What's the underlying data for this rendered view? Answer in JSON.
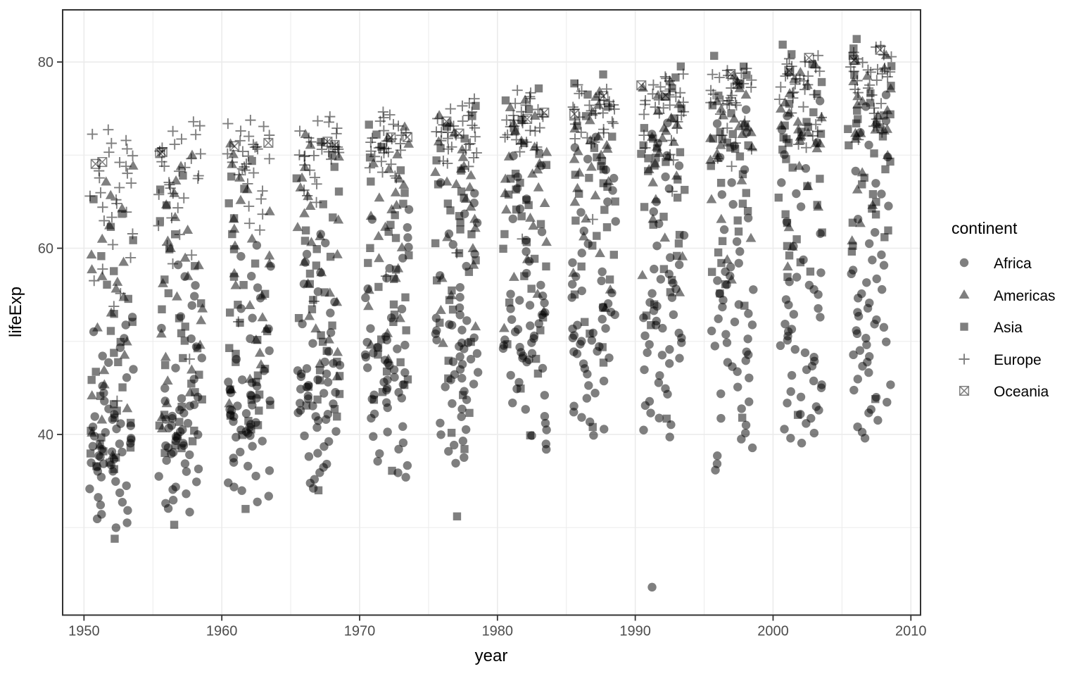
{
  "chart": {
    "title": "",
    "xlabel": "year",
    "ylabel": "lifeExp",
    "x_ticks": [
      1950,
      1960,
      1970,
      1980,
      1990,
      2000,
      2010
    ],
    "x_minor_ticks": [
      1955,
      1965,
      1975,
      1985,
      1995,
      2005
    ],
    "y_ticks": [
      40,
      60,
      80
    ],
    "y_minor_ticks": [
      30,
      50,
      70
    ],
    "legend": {
      "title": "continent",
      "position": "right",
      "items": [
        {
          "label": "Africa",
          "shape": "circle"
        },
        {
          "label": "Americas",
          "shape": "triangle"
        },
        {
          "label": "Asia",
          "shape": "square"
        },
        {
          "label": "Europe",
          "shape": "plus"
        },
        {
          "label": "Oceania",
          "shape": "square-x"
        }
      ]
    },
    "colors": {
      "point": "#000000",
      "point_alpha": 0.5,
      "gridline": "#ebebeb",
      "panel_border": "#333333",
      "tick_mark": "#333333",
      "tick_label": "#4d4d4d",
      "background": "#ffffff"
    }
  },
  "chart_data": {
    "type": "scatter",
    "title": "",
    "xlabel": "year",
    "ylabel": "lifeExp",
    "xlim": [
      1948.45,
      2010.7
    ],
    "ylim": [
      20.6,
      85.6
    ],
    "grid": true,
    "legend_position": "right",
    "jitter_width": 1.6,
    "jitter_height": 0.15,
    "years": [
      1952,
      1957,
      1962,
      1967,
      1972,
      1977,
      1982,
      1987,
      1992,
      1997,
      2002,
      2007
    ],
    "series": [
      {
        "name": "Africa",
        "shape": "circle",
        "n_per_year": 52,
        "quantiles_by_year": [
          [
            30.0,
            35.9,
            38.8,
            42.1,
            52.7
          ],
          [
            31.6,
            37.7,
            40.6,
            44.1,
            58.1
          ],
          [
            32.8,
            39.6,
            42.6,
            46.0,
            60.2
          ],
          [
            34.1,
            41.3,
            44.7,
            48.0,
            61.6
          ],
          [
            35.4,
            43.3,
            47.0,
            50.5,
            64.3
          ],
          [
            36.8,
            45.0,
            49.3,
            52.8,
            67.1
          ],
          [
            38.4,
            47.6,
            50.8,
            55.3,
            69.9
          ],
          [
            39.9,
            48.2,
            51.6,
            57.5,
            71.9
          ],
          [
            39.7,
            47.9,
            52.4,
            58.4,
            73.6
          ],
          [
            36.1,
            46.6,
            52.3,
            58.6,
            74.8
          ],
          [
            39.2,
            45.3,
            51.2,
            57.6,
            75.7
          ],
          [
            39.6,
            47.8,
            52.9,
            59.4,
            76.4
          ]
        ],
        "outliers": [
          [
            1992,
            23.6
          ]
        ]
      },
      {
        "name": "Americas",
        "shape": "triangle",
        "n_per_year": 25,
        "quantiles_by_year": [
          [
            37.6,
            45.3,
            54.7,
            59.4,
            68.8
          ],
          [
            40.7,
            48.3,
            56.1,
            61.8,
            70.0
          ],
          [
            43.4,
            51.4,
            58.3,
            63.9,
            71.3
          ],
          [
            46.2,
            54.1,
            60.5,
            65.4,
            72.1
          ],
          [
            48.0,
            56.8,
            63.4,
            67.4,
            72.9
          ],
          [
            49.9,
            60.0,
            66.4,
            68.9,
            74.2
          ],
          [
            51.5,
            62.4,
            67.4,
            70.8,
            75.8
          ],
          [
            53.6,
            65.0,
            69.5,
            72.0,
            76.9
          ],
          [
            55.1,
            67.1,
            70.9,
            73.2,
            77.9
          ],
          [
            56.7,
            69.3,
            72.1,
            74.2,
            78.6
          ],
          [
            58.1,
            70.8,
            72.4,
            74.9,
            79.8
          ],
          [
            60.9,
            71.8,
            72.9,
            76.4,
            80.7
          ]
        ],
        "outliers": []
      },
      {
        "name": "Asia",
        "shape": "square",
        "n_per_year": 33,
        "quantiles_by_year": [
          [
            36.3,
            39.4,
            45.3,
            53.3,
            65.4
          ],
          [
            37.9,
            41.8,
            48.7,
            55.3,
            67.8
          ],
          [
            39.9,
            44.0,
            49.6,
            57.3,
            69.4
          ],
          [
            42.0,
            46.8,
            54.0,
            61.0,
            71.4
          ],
          [
            43.6,
            49.9,
            57.2,
            63.7,
            73.4
          ],
          [
            38.4,
            53.3,
            61.1,
            66.1,
            75.4
          ],
          [
            45.0,
            56.9,
            63.9,
            68.2,
            77.1
          ],
          [
            47.8,
            59.1,
            66.4,
            70.0,
            78.7
          ],
          [
            51.6,
            61.3,
            68.8,
            71.0,
            79.4
          ],
          [
            53.9,
            62.7,
            70.4,
            72.5,
            80.7
          ],
          [
            56.8,
            63.3,
            71.1,
            73.7,
            82.0
          ],
          [
            59.5,
            65.7,
            72.5,
            74.8,
            82.6
          ]
        ],
        "outliers": [
          [
            1952,
            28.8
          ],
          [
            1957,
            30.3
          ],
          [
            1962,
            32.0
          ],
          [
            1967,
            34.0
          ],
          [
            1972,
            36.1
          ],
          [
            1977,
            31.2
          ],
          [
            1982,
            39.9
          ],
          [
            1987,
            40.8
          ],
          [
            1992,
            41.7
          ],
          [
            1997,
            41.8
          ],
          [
            2002,
            42.1
          ],
          [
            2007,
            43.8
          ]
        ]
      },
      {
        "name": "Europe",
        "shape": "plus",
        "n_per_year": 30,
        "quantiles_by_year": [
          [
            53.8,
            62.9,
            66.1,
            69.3,
            72.7
          ],
          [
            58.4,
            65.3,
            67.8,
            70.4,
            73.5
          ],
          [
            61.9,
            67.8,
            69.6,
            71.2,
            73.7
          ],
          [
            64.8,
            69.7,
            70.5,
            71.4,
            74.2
          ],
          [
            67.4,
            70.2,
            70.9,
            72.3,
            74.7
          ],
          [
            68.9,
            71.0,
            72.3,
            73.5,
            76.1
          ],
          [
            70.4,
            72.3,
            73.6,
            74.6,
            77.0
          ],
          [
            71.1,
            73.2,
            74.8,
            75.5,
            77.4
          ],
          [
            69.4,
            74.2,
            75.5,
            76.8,
            78.8
          ],
          [
            69.7,
            75.3,
            76.1,
            77.8,
            79.4
          ],
          [
            71.3,
            75.9,
            77.5,
            78.8,
            80.6
          ],
          [
            71.8,
            76.5,
            78.6,
            79.5,
            81.8
          ]
        ],
        "outliers": [
          [
            1952,
            43.6
          ],
          [
            1957,
            48.1
          ],
          [
            1962,
            52.1
          ],
          [
            1967,
            54.3
          ],
          [
            1972,
            57.0
          ],
          [
            1977,
            59.5
          ],
          [
            1982,
            61.0
          ],
          [
            1987,
            63.1
          ],
          [
            1992,
            66.1
          ],
          [
            1997,
            68.8
          ],
          [
            2002,
            70.8
          ]
        ]
      },
      {
        "name": "Oceania",
        "shape": "square-x",
        "n_per_year": 2,
        "values_by_year": [
          [
            69.1,
            69.4
          ],
          [
            70.3,
            70.3
          ],
          [
            70.9,
            71.2
          ],
          [
            71.1,
            71.5
          ],
          [
            71.9,
            71.9
          ],
          [
            72.2,
            73.5
          ],
          [
            73.8,
            74.7
          ],
          [
            74.3,
            76.3
          ],
          [
            76.3,
            77.6
          ],
          [
            77.6,
            78.8
          ],
          [
            79.1,
            80.4
          ],
          [
            80.2,
            81.2
          ]
        ],
        "outliers": []
      }
    ],
    "notable_points": [
      {
        "year": 1992,
        "continent": "Africa",
        "lifeExp": 23.6,
        "note": "lowest point on chart"
      },
      {
        "year": 2007,
        "continent": "Asia",
        "lifeExp": 82.6,
        "note": "highest point on chart"
      }
    ]
  }
}
